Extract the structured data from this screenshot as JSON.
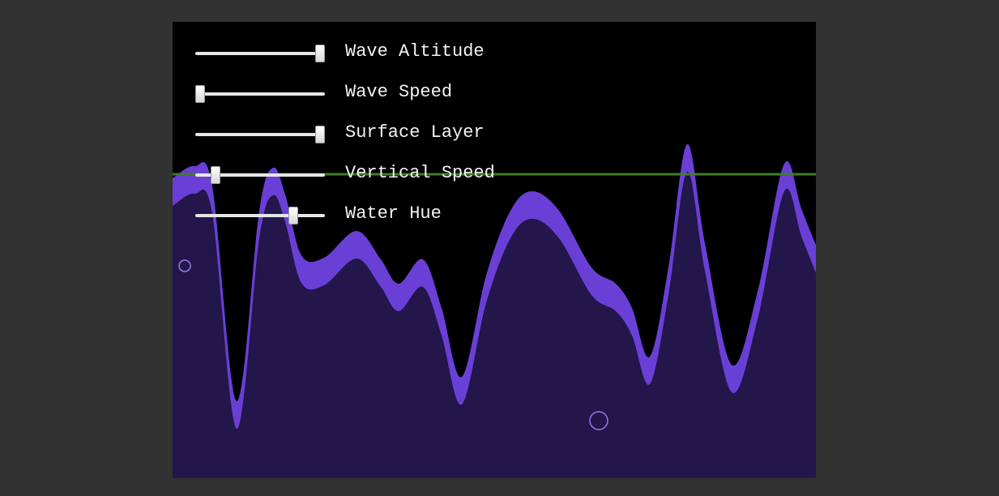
{
  "controls": [
    {
      "label": "Wave Altitude"
    },
    {
      "label": "Wave Speed"
    },
    {
      "label": "Surface Layer"
    },
    {
      "label": "Vertical Speed"
    },
    {
      "label": "Water Hue"
    }
  ]
}
